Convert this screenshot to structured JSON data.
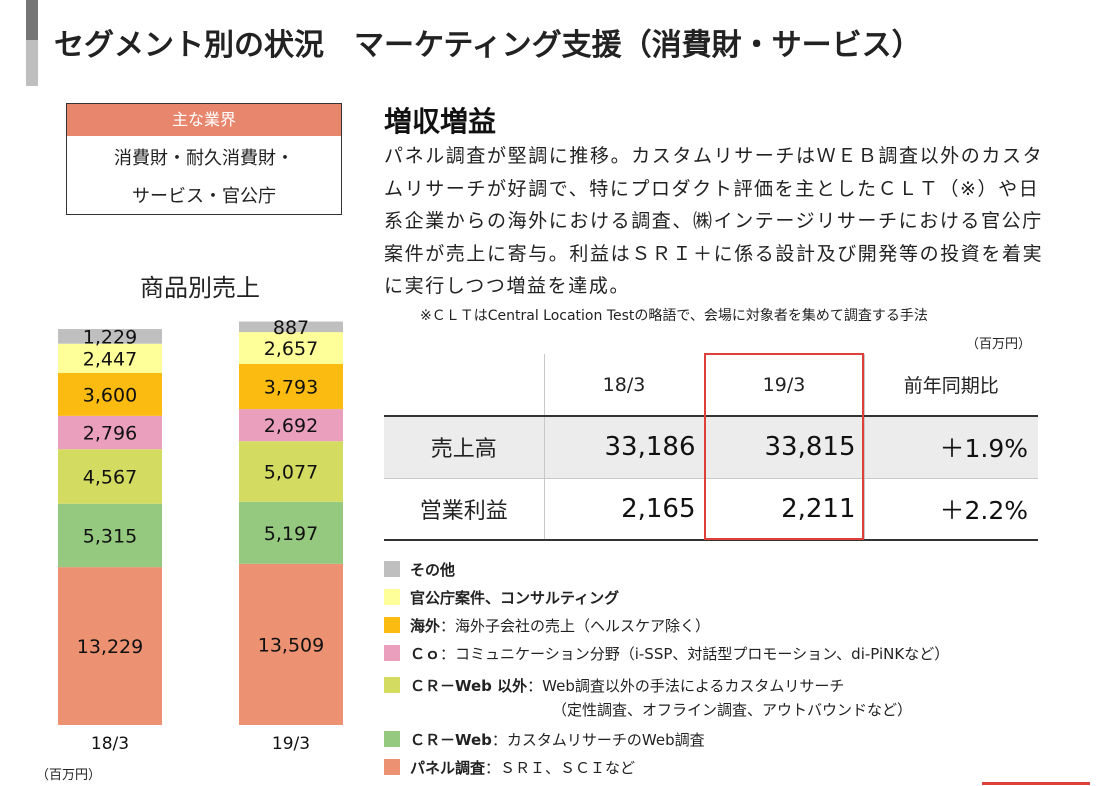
{
  "header": {
    "title": "セグメント別の状況　マーケティング支援（消費財・サービス）"
  },
  "industry": {
    "heading": "主な業界",
    "line1": "消費財・耐久消費財・",
    "line2": "サービス・官公庁"
  },
  "summary": {
    "headline": "増収増益",
    "body": "パネル調査が堅調に推移。カスタムリサーチはＷＥＢ調査以外のカスタムリサーチが好調で、特にプロダクト評価を主としたＣＬＴ（※）や日系企業からの海外における調査、㈱インテージリサーチにおける官公庁案件が売上に寄与。利益はＳＲＩ＋に係る設計及び開発等の投資を着実に実行しつつ増益を達成。",
    "note": "※ＣＬＴはCentral Location Testの略語で、会場に対象者を集めて調査する手法"
  },
  "table": {
    "unit": "（百万円）",
    "headers": [
      "18/3",
      "19/3",
      "前年同期比"
    ],
    "rows": [
      {
        "label": "売上高",
        "v18": "33,186",
        "v19": "33,815",
        "yoy": "＋1.9%"
      },
      {
        "label": "営業利益",
        "v18": "2,165",
        "v19": "2,211",
        "yoy": "＋2.2%"
      }
    ]
  },
  "chart_data": {
    "type": "bar",
    "stacked": true,
    "title": "商品別売上",
    "categories": [
      "18/3",
      "19/3"
    ],
    "unit": "（百万円）",
    "series": [
      {
        "name": "パネル調査",
        "values": [
          13229,
          13509
        ],
        "labels": [
          "13,229",
          "13,509"
        ],
        "color": "#ec9172"
      },
      {
        "name": "ＣＲ－Web",
        "values": [
          5315,
          5197
        ],
        "labels": [
          "5,315",
          "5,197"
        ],
        "color": "#94c97f"
      },
      {
        "name": "ＣＲ－Web 以外",
        "values": [
          4567,
          5077
        ],
        "labels": [
          "4,567",
          "5,077"
        ],
        "color": "#d3dc60"
      },
      {
        "name": "Ｃｏ",
        "values": [
          2796,
          2692
        ],
        "labels": [
          "2,796",
          "2,692"
        ],
        "color": "#eaa0bd"
      },
      {
        "name": "海外",
        "values": [
          3600,
          3793
        ],
        "labels": [
          "3,600",
          "3,793"
        ],
        "color": "#fbbb10"
      },
      {
        "name": "官公庁案件、コンサルティング",
        "values": [
          2447,
          2657
        ],
        "labels": [
          "2,447",
          "2,657"
        ],
        "color": "#ffff99"
      },
      {
        "name": "その他",
        "values": [
          1229,
          887
        ],
        "labels": [
          "1,229",
          "887"
        ],
        "color": "#bfbfbf"
      }
    ]
  },
  "legend": [
    {
      "bold": "その他",
      "rest": "",
      "color": "#bfbfbf"
    },
    {
      "bold": "官公庁案件、コンサルティング",
      "rest": "",
      "color": "#ffff99"
    },
    {
      "bold": "海外",
      "rest": "：海外子会社の売上（ヘルスケア除く）",
      "color": "#fbbb10"
    },
    {
      "bold": "Ｃｏ",
      "rest": "：コミュニケーション分野（i-SSP、対話型プロモーション、di-PiNKなど）",
      "color": "#eaa0bd"
    },
    {
      "bold": "ＣＲ－Web 以外",
      "rest": "：Web調査以外の手法によるカスタムリサーチ",
      "sub": "（定性調査、オフライン調査、アウトバウンドなど）",
      "color": "#d3dc60"
    },
    {
      "bold": "ＣＲ－Web",
      "rest": "：カスタムリサーチのWeb調査",
      "color": "#94c97f"
    },
    {
      "bold": "パネル調査",
      "rest": "：ＳＲＩ、ＳＣＩなど",
      "color": "#ec9172"
    }
  ]
}
